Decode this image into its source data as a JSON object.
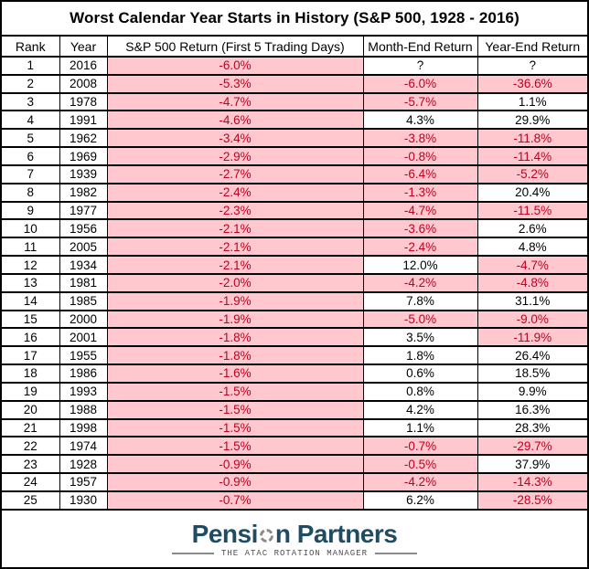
{
  "title": "Worst Calendar Year Starts in History (S&P 500, 1928 - 2016)",
  "chart_data": {
    "type": "table",
    "title": "Worst Calendar Year Starts in History (S&P 500, 1928 - 2016)",
    "columns": [
      "Rank",
      "Year",
      "S&P 500 Return (First 5 Trading Days)",
      "Month-End Return",
      "Year-End Return"
    ],
    "rows": [
      [
        "1",
        "2016",
        "-6.0%",
        "?",
        "?"
      ],
      [
        "2",
        "2008",
        "-5.3%",
        "-6.0%",
        "-36.6%"
      ],
      [
        "3",
        "1978",
        "-4.7%",
        "-5.7%",
        "1.1%"
      ],
      [
        "4",
        "1991",
        "-4.6%",
        "4.3%",
        "29.9%"
      ],
      [
        "5",
        "1962",
        "-3.4%",
        "-3.8%",
        "-11.8%"
      ],
      [
        "6",
        "1969",
        "-2.9%",
        "-0.8%",
        "-11.4%"
      ],
      [
        "7",
        "1939",
        "-2.7%",
        "-6.4%",
        "-5.2%"
      ],
      [
        "8",
        "1982",
        "-2.4%",
        "-1.3%",
        "20.4%"
      ],
      [
        "9",
        "1977",
        "-2.3%",
        "-4.7%",
        "-11.5%"
      ],
      [
        "10",
        "1956",
        "-2.1%",
        "-3.6%",
        "2.6%"
      ],
      [
        "11",
        "2005",
        "-2.1%",
        "-2.4%",
        "4.8%"
      ],
      [
        "12",
        "1934",
        "-2.1%",
        "12.0%",
        "-4.7%"
      ],
      [
        "13",
        "1981",
        "-2.0%",
        "-4.2%",
        "-4.8%"
      ],
      [
        "14",
        "1985",
        "-1.9%",
        "7.8%",
        "31.1%"
      ],
      [
        "15",
        "2000",
        "-1.9%",
        "-5.0%",
        "-9.0%"
      ],
      [
        "16",
        "2001",
        "-1.8%",
        "3.5%",
        "-11.9%"
      ],
      [
        "17",
        "1955",
        "-1.8%",
        "1.8%",
        "26.4%"
      ],
      [
        "18",
        "1986",
        "-1.6%",
        "0.6%",
        "18.5%"
      ],
      [
        "19",
        "1993",
        "-1.5%",
        "0.8%",
        "9.9%"
      ],
      [
        "20",
        "1988",
        "-1.5%",
        "4.2%",
        "16.3%"
      ],
      [
        "21",
        "1998",
        "-1.5%",
        "1.1%",
        "28.3%"
      ],
      [
        "22",
        "1974",
        "-1.5%",
        "-0.7%",
        "-29.7%"
      ],
      [
        "23",
        "1928",
        "-0.9%",
        "-0.5%",
        "37.9%"
      ],
      [
        "24",
        "1957",
        "-0.9%",
        "-4.2%",
        "-14.3%"
      ],
      [
        "25",
        "1930",
        "-0.7%",
        "6.2%",
        "-28.5%"
      ]
    ],
    "conditional_format": "negative percentage cells have light red fill with dark red text; non-negative and '?' cells are white with black text",
    "legend_position": "none",
    "grid": true
  },
  "footer": {
    "logo_text_before_icon": "Pensi",
    "logo_text_after_icon": "n Partners",
    "tagline": "THE ATAC ROTATION MANAGER"
  },
  "colors": {
    "negative_fill": "#FFC7CE",
    "negative_text": "#C00020",
    "text": "#000000",
    "border": "#000000",
    "logo": "#1E4D63",
    "tagline": "#4F4F4F",
    "icon_gray": "#8A8A8A"
  }
}
